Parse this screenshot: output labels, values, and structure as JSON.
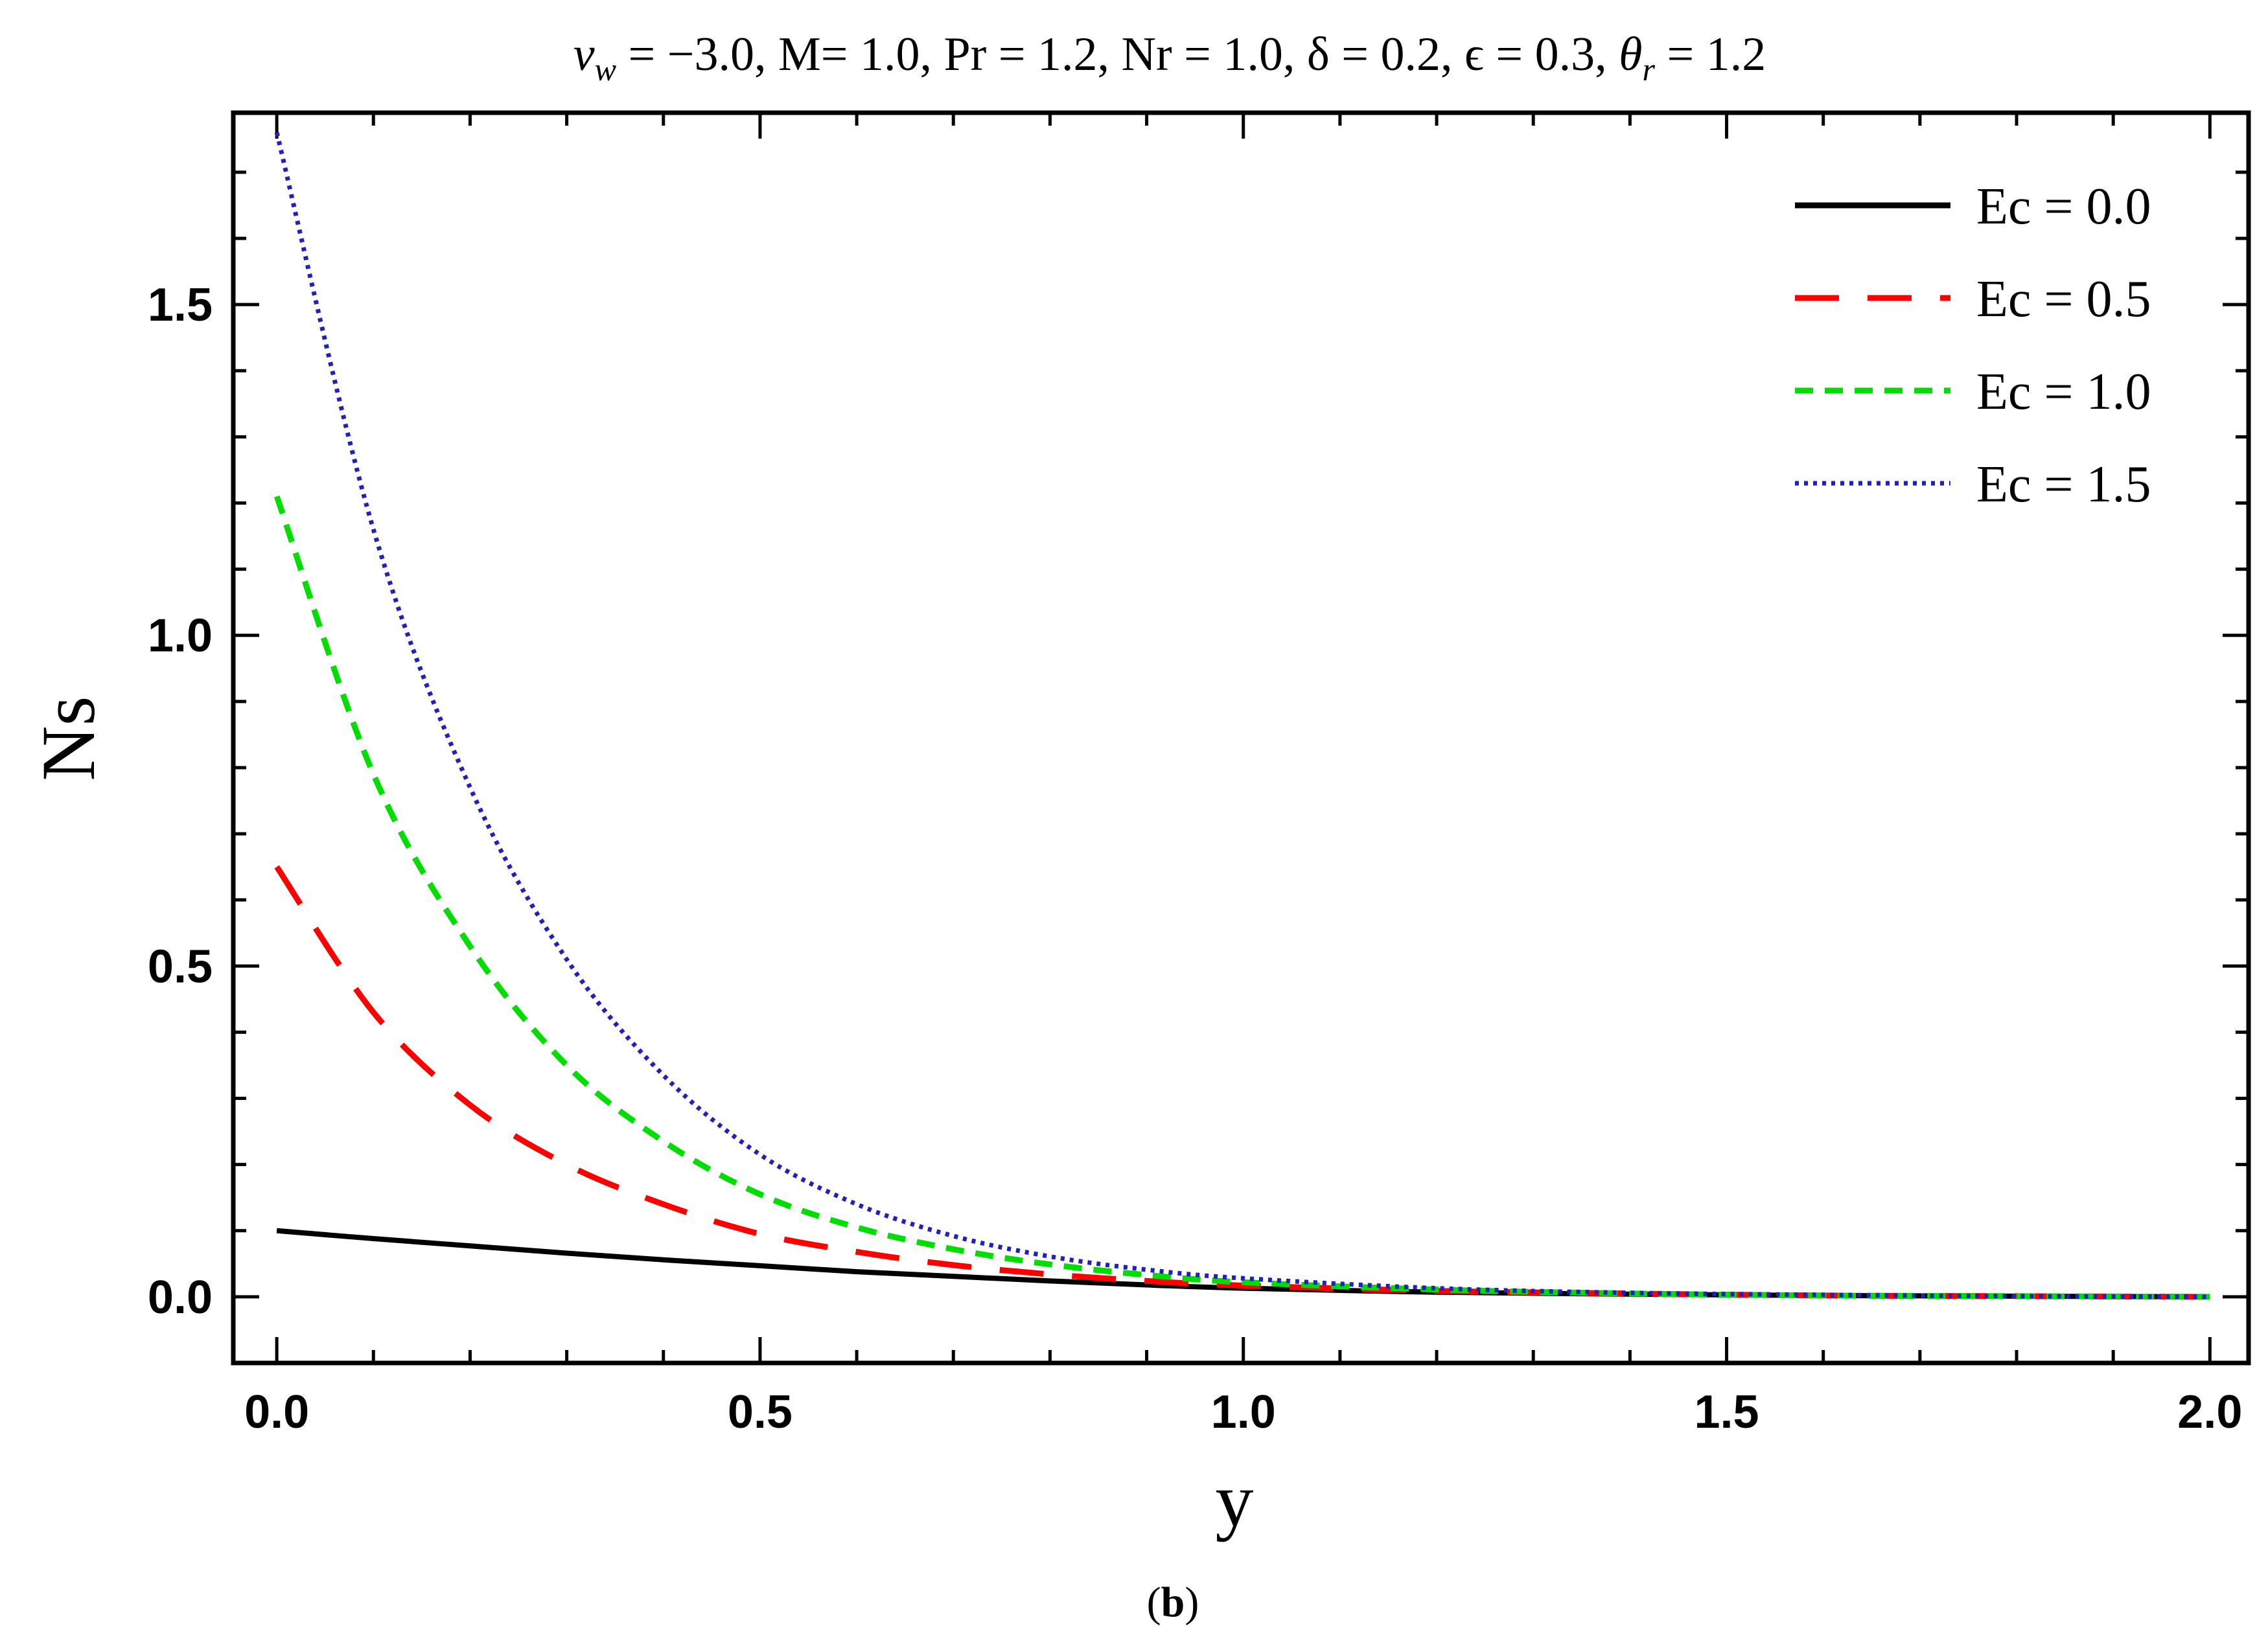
{
  "chart_data": {
    "type": "line",
    "title": "ν_w = −3.0, M= 1.0, Pr = 1.2, Nr = 1.0, δ = 0.2, ϵ = 0.3, θ_r = 1.2",
    "title_parts": {
      "nu_base": "ν",
      "nu_sub": "w",
      "middle": " = −3.0, M= 1.0, Pr = 1.2, Nr = 1.0, δ = 0.2, ϵ = 0.3, ",
      "theta_base": "θ",
      "theta_sub": "r",
      "end": " = 1.2"
    },
    "xlabel": "y",
    "ylabel": "Ns",
    "xlim": [
      -0.045,
      2.04
    ],
    "ylim": [
      -0.1,
      1.79
    ],
    "xticks": [
      0.0,
      0.5,
      1.0,
      1.5,
      2.0
    ],
    "xtick_labels": [
      "0.0",
      "0.5",
      "1.0",
      "1.5",
      "2.0"
    ],
    "yticks": [
      0.0,
      0.5,
      1.0,
      1.5
    ],
    "ytick_labels": [
      "0.0",
      "0.5",
      "1.0",
      "1.5"
    ],
    "grid": false,
    "legend_position": "top-right",
    "caption": "(b)",
    "caption_parts": {
      "open": "(",
      "letter": "b",
      "close": ")"
    },
    "series": [
      {
        "name": "Ec = 0.0",
        "color": "#000000",
        "style": "solid",
        "x": [
          0.0,
          0.1,
          0.2,
          0.3,
          0.4,
          0.5,
          0.6,
          0.7,
          0.8,
          0.9,
          1.0,
          1.2,
          1.4,
          1.6,
          1.8,
          2.0
        ],
        "y": [
          0.1,
          0.088,
          0.077,
          0.066,
          0.056,
          0.047,
          0.038,
          0.031,
          0.024,
          0.018,
          0.013,
          0.007,
          0.004,
          0.002,
          0.001,
          0.0
        ]
      },
      {
        "name": "Ec = 0.5",
        "color": "#ff0000",
        "style": "long-dash",
        "x": [
          0.0,
          0.1,
          0.2,
          0.3,
          0.4,
          0.5,
          0.6,
          0.7,
          0.8,
          0.9,
          1.0,
          1.2,
          1.4,
          1.6,
          1.8,
          2.0
        ],
        "y": [
          0.65,
          0.43,
          0.29,
          0.2,
          0.14,
          0.095,
          0.068,
          0.048,
          0.034,
          0.024,
          0.017,
          0.009,
          0.005,
          0.002,
          0.001,
          0.0
        ]
      },
      {
        "name": "Ec = 1.0",
        "color": "#00dd00",
        "style": "short-dash",
        "x": [
          0.0,
          0.1,
          0.2,
          0.3,
          0.4,
          0.5,
          0.6,
          0.7,
          0.8,
          0.9,
          1.0,
          1.2,
          1.4,
          1.6,
          1.8,
          2.0
        ],
        "y": [
          1.21,
          0.79,
          0.53,
          0.35,
          0.235,
          0.155,
          0.105,
          0.072,
          0.049,
          0.033,
          0.022,
          0.011,
          0.005,
          0.002,
          0.001,
          0.0
        ]
      },
      {
        "name": "Ec = 1.5",
        "color": "#2020c0",
        "style": "dotted",
        "x": [
          0.0,
          0.1,
          0.2,
          0.3,
          0.4,
          0.5,
          0.6,
          0.7,
          0.8,
          0.9,
          1.0,
          1.2,
          1.4,
          1.6,
          1.8,
          2.0
        ],
        "y": [
          1.76,
          1.16,
          0.77,
          0.51,
          0.335,
          0.215,
          0.14,
          0.092,
          0.061,
          0.041,
          0.028,
          0.013,
          0.006,
          0.003,
          0.001,
          0.0
        ]
      }
    ]
  }
}
